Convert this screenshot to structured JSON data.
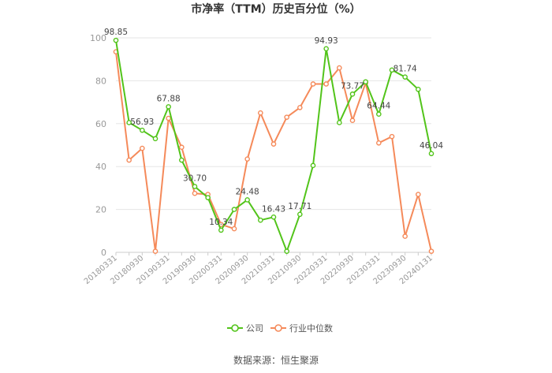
{
  "chart_data": {
    "type": "line",
    "title": "市净率（TTM）历史百分位（%）",
    "xlabel": "",
    "ylabel": "",
    "ylim": [
      0,
      100
    ],
    "yticks": [
      0,
      20,
      40,
      60,
      80,
      100
    ],
    "grid": true,
    "legend_position": "bottom",
    "colors": {
      "company": "#52c41a",
      "industry": "#f58a5a"
    },
    "x": [
      "20180331",
      "20180630",
      "20180930",
      "20181231",
      "20190331",
      "20190630",
      "20190930",
      "20191231",
      "20200331",
      "20200630",
      "20200930",
      "20201231",
      "20210331",
      "20210630",
      "20210930",
      "20211231",
      "20220331",
      "20220630",
      "20220930",
      "20221231",
      "20230331",
      "20230630",
      "20230930",
      "20231231",
      "20240131"
    ],
    "x_tick_labels": [
      "20180331",
      "20180930",
      "20190331",
      "20190930",
      "20200331",
      "20200930",
      "20210331",
      "20210930",
      "20220331",
      "20220930",
      "20230331",
      "20230930",
      "20240131"
    ],
    "series": [
      {
        "name": "公司",
        "values": [
          98.85,
          60.5,
          56.93,
          53.0,
          67.88,
          43.0,
          30.7,
          25.5,
          10.34,
          20.0,
          24.48,
          15.0,
          16.43,
          0.5,
          17.71,
          40.5,
          94.93,
          60.5,
          73.77,
          79.5,
          64.44,
          85.0,
          81.74,
          76.0,
          46.04
        ]
      },
      {
        "name": "行业中位数",
        "values": [
          93.5,
          43.0,
          48.5,
          0.5,
          62.5,
          49.0,
          27.5,
          27.0,
          13.0,
          11.0,
          43.5,
          65.0,
          50.5,
          63.0,
          67.5,
          78.5,
          78.5,
          86.0,
          61.5,
          79.0,
          51.0,
          54.0,
          7.5,
          27.0,
          0.5
        ]
      }
    ],
    "data_labels": [
      {
        "index": 0,
        "text": "98.85"
      },
      {
        "index": 2,
        "text": "56.93"
      },
      {
        "index": 4,
        "text": "67.88"
      },
      {
        "index": 6,
        "text": "30.70"
      },
      {
        "index": 8,
        "text": "10.34"
      },
      {
        "index": 10,
        "text": "24.48"
      },
      {
        "index": 12,
        "text": "16.43"
      },
      {
        "index": 14,
        "text": "17.71"
      },
      {
        "index": 16,
        "text": "94.93"
      },
      {
        "index": 18,
        "text": "73.77"
      },
      {
        "index": 20,
        "text": "64.44"
      },
      {
        "index": 22,
        "text": "81.74"
      },
      {
        "index": 24,
        "text": "46.04"
      }
    ],
    "source": "数据来源：恒生聚源"
  }
}
